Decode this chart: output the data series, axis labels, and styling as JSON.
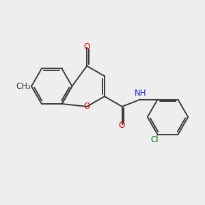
{
  "bg_color": "#eeeeee",
  "bond_color": "#3a3a3a",
  "bond_lw": 1.4,
  "font_size": 8.5,
  "o_color": "#cc0000",
  "n_color": "#2222cc",
  "cl_color": "#007700",
  "c_color": "#3a3a3a",
  "bl": 1.0,
  "figsize": [
    3.0,
    3.0
  ],
  "dpi": 100,
  "xlim": [
    0,
    10
  ],
  "ylim": [
    0,
    10
  ]
}
